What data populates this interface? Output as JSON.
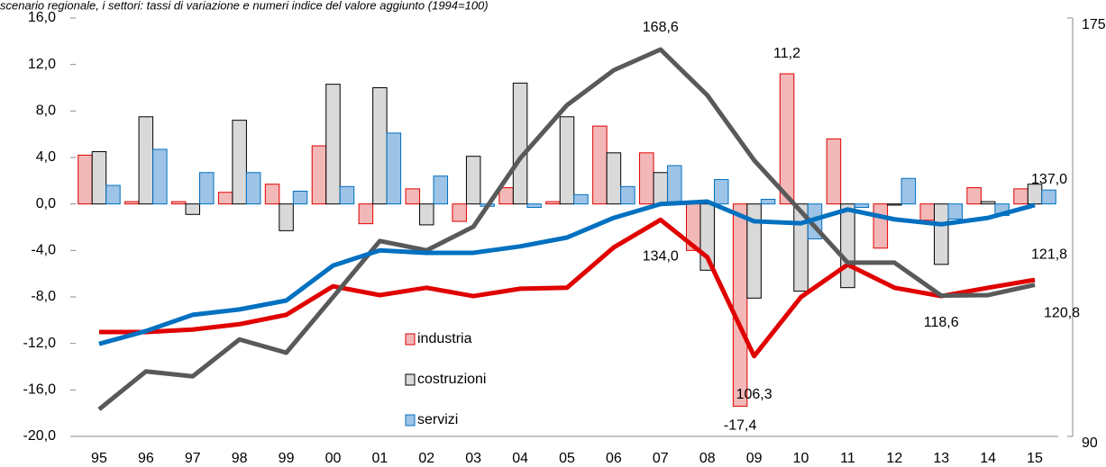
{
  "chart_data": {
    "type": "bar-line",
    "title": "scenario regionale, i settori: tassi di variazione e numeri indice del valore aggiunto (1994=100)",
    "categories": [
      "95",
      "96",
      "97",
      "98",
      "99",
      "00",
      "01",
      "02",
      "03",
      "04",
      "05",
      "06",
      "07",
      "08",
      "09",
      "10",
      "11",
      "12",
      "13",
      "14",
      "15"
    ],
    "ylim": [
      -20,
      16
    ],
    "yticks": [
      {
        "value": -20,
        "label": "-20,0"
      },
      {
        "value": -16,
        "label": "-16,0"
      },
      {
        "value": -12,
        "label": "-12,0"
      },
      {
        "value": -8,
        "label": "-8,0"
      },
      {
        "value": -4,
        "label": "-4,0"
      },
      {
        "value": 0,
        "label": "0,0"
      },
      {
        "value": 4,
        "label": "4,0"
      },
      {
        "value": 8,
        "label": "8,0"
      },
      {
        "value": 12,
        "label": "12,0"
      },
      {
        "value": 16,
        "label": "16,0"
      }
    ],
    "y2lim": [
      90,
      175
    ],
    "y2ticks": [
      90,
      175
    ],
    "series": [
      {
        "name": "industria",
        "type": "bar",
        "color": "#f2b8b8",
        "edgecolor": "#e00000",
        "values": [
          4.2,
          0.2,
          0.2,
          1.0,
          1.7,
          5.0,
          -1.7,
          1.3,
          -1.5,
          1.4,
          0.2,
          6.7,
          4.4,
          -4.0,
          -17.4,
          11.2,
          5.6,
          -3.8,
          -1.4,
          1.4,
          1.3
        ],
        "value_labels": [
          null,
          null,
          null,
          null,
          null,
          null,
          null,
          null,
          null,
          null,
          null,
          null,
          null,
          null,
          "-17,4",
          "11,2",
          null,
          null,
          null,
          null,
          null
        ]
      },
      {
        "name": "costruzioni",
        "type": "bar",
        "color": "#d9d9d9",
        "edgecolor": "#000000",
        "values": [
          4.5,
          7.5,
          -0.9,
          7.2,
          -2.3,
          10.3,
          10.0,
          -1.8,
          4.1,
          10.4,
          7.5,
          4.4,
          2.7,
          -5.7,
          -8.1,
          -7.5,
          -7.2,
          -0.1,
          -5.2,
          0.2,
          1.7
        ]
      },
      {
        "name": "servizi",
        "type": "bar",
        "color": "#9dc3e6",
        "edgecolor": "#0070c0",
        "values": [
          1.6,
          4.7,
          2.7,
          2.7,
          1.1,
          1.5,
          6.1,
          2.4,
          -0.2,
          -0.3,
          0.8,
          1.5,
          3.3,
          2.1,
          0.4,
          -3.0,
          -0.3,
          2.2,
          -1.3,
          -1.0,
          1.2
        ]
      },
      {
        "type": "line",
        "axis": "y2",
        "color": "#e00000",
        "values": [
          111.2,
          111.2,
          111.7,
          112.8,
          114.7,
          120.5,
          118.7,
          120.2,
          118.5,
          120.0,
          120.2,
          128.4,
          134.0,
          126.4,
          106.3,
          118.3,
          124.9,
          120.2,
          118.5,
          120.2,
          121.8
        ],
        "value_labels": [
          null,
          null,
          null,
          null,
          null,
          null,
          null,
          null,
          null,
          null,
          null,
          null,
          "134,0",
          null,
          "106,3",
          null,
          null,
          null,
          null,
          null,
          "121,8"
        ]
      },
      {
        "type": "line",
        "axis": "y2",
        "color": "#595959",
        "values": [
          95.5,
          103.2,
          102.2,
          109.7,
          107.0,
          118.3,
          129.7,
          127.8,
          132.6,
          146.5,
          157.3,
          164.4,
          168.6,
          159.3,
          146.1,
          135.7,
          125.3,
          125.3,
          118.6,
          118.7,
          120.8
        ],
        "value_labels": [
          null,
          null,
          null,
          null,
          null,
          null,
          null,
          null,
          null,
          null,
          null,
          null,
          "168,6",
          null,
          null,
          null,
          null,
          null,
          "118,6",
          null,
          "120,8"
        ]
      },
      {
        "type": "line",
        "axis": "y2",
        "color": "#0070c0",
        "values": [
          108.8,
          111.4,
          114.7,
          115.8,
          117.6,
          124.7,
          127.8,
          127.3,
          127.3,
          128.6,
          130.4,
          134.4,
          137.2,
          137.7,
          133.7,
          133.3,
          136.1,
          134.1,
          133.1,
          134.4,
          137.0
        ],
        "value_labels": [
          null,
          null,
          null,
          null,
          null,
          null,
          null,
          null,
          null,
          null,
          null,
          null,
          null,
          null,
          null,
          null,
          null,
          null,
          null,
          null,
          "137,0"
        ]
      }
    ]
  }
}
